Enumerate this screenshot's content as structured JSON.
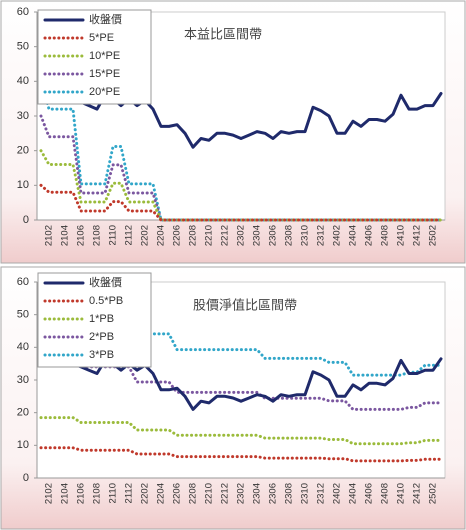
{
  "chart_data": [
    {
      "type": "line",
      "title": "本益比區間帶",
      "categories": [
        null,
        "2102",
        null,
        "2104",
        null,
        "2106",
        null,
        "2108",
        null,
        "2110",
        null,
        "2112",
        null,
        "2202",
        null,
        "2204",
        null,
        "2206",
        null,
        "2208",
        null,
        "2210",
        null,
        "2212",
        null,
        "2302",
        null,
        "2304",
        null,
        "2306",
        null,
        "2308",
        null,
        "2310",
        null,
        "2312",
        null,
        "2402",
        null,
        "2404",
        null,
        "2406",
        null,
        "2408",
        null,
        "2410",
        null,
        "2412",
        null,
        "2502",
        null
      ],
      "ylim": [
        0,
        60
      ],
      "yticks": [
        0,
        10,
        20,
        30,
        40,
        50,
        60
      ],
      "series": [
        {
          "name": "收盤價",
          "color": "#1f2a6b",
          "style": "solid",
          "values": [
            36,
            37,
            36,
            35,
            35,
            34,
            33,
            32,
            36,
            35,
            33,
            35,
            33,
            34.5,
            32,
            27,
            27,
            27.5,
            25,
            21,
            23.5,
            23,
            25,
            25,
            24.5,
            23.5,
            24.5,
            25.5,
            25,
            23.5,
            25.5,
            25,
            25.5,
            25.5,
            32.5,
            31.5,
            30,
            25,
            25,
            28.5,
            27,
            29,
            29,
            28.5,
            30.5,
            36,
            32,
            32,
            33,
            33,
            36.5
          ]
        },
        {
          "name": "5*PE",
          "color": "#c0392b",
          "style": "dotted",
          "values": [
            10,
            8,
            8,
            8,
            8,
            2.6,
            2.6,
            2.6,
            2.6,
            5.3,
            5.3,
            2.6,
            2.6,
            2.6,
            2.6,
            0,
            0,
            0,
            0,
            0,
            0,
            0,
            0,
            0,
            0,
            0,
            0,
            0,
            0,
            0,
            0,
            0,
            0,
            0,
            0,
            0,
            0,
            0,
            0,
            0,
            0,
            0,
            0,
            0,
            0,
            0,
            0,
            0,
            0,
            0,
            0
          ]
        },
        {
          "name": "10*PE",
          "color": "#9bbb3b",
          "style": "dotted",
          "values": [
            20,
            16,
            16,
            16,
            16,
            5.2,
            5.2,
            5.2,
            5.2,
            10.6,
            10.6,
            5.2,
            5.2,
            5.2,
            5.2,
            0,
            0,
            0,
            0,
            0,
            0,
            0,
            0,
            0,
            0,
            0,
            0,
            0,
            0,
            0,
            0,
            0,
            0,
            0,
            0,
            0,
            0,
            0,
            0,
            0,
            0,
            0,
            0,
            0,
            0,
            0,
            0,
            0,
            0,
            0,
            0
          ]
        },
        {
          "name": "15*PE",
          "color": "#7b57a0",
          "style": "dotted",
          "values": [
            30,
            24,
            24,
            24,
            24,
            7.8,
            7.8,
            7.8,
            7.8,
            15.9,
            15.9,
            7.8,
            7.8,
            7.8,
            7.8,
            0,
            0,
            0,
            0,
            0,
            0,
            0,
            0,
            0,
            0,
            0,
            0,
            0,
            0,
            0,
            0,
            0,
            0,
            0,
            0,
            0,
            0,
            0,
            0,
            0,
            0,
            0,
            0,
            0,
            0,
            0,
            0,
            0,
            0,
            0,
            0
          ]
        },
        {
          "name": "20*PE",
          "color": "#31a6c9",
          "style": "dotted",
          "values": [
            40,
            32,
            32,
            32,
            32,
            10.4,
            10.4,
            10.4,
            10.4,
            21.2,
            21.2,
            10.4,
            10.4,
            10.4,
            10.4,
            0,
            0,
            0,
            0,
            0,
            0,
            0,
            0,
            0,
            0,
            0,
            0,
            0,
            0,
            0,
            0,
            0,
            0,
            0,
            0,
            0,
            0,
            0,
            0,
            0,
            0,
            0,
            0,
            0,
            0,
            0,
            0,
            0,
            0,
            0,
            0
          ]
        }
      ]
    },
    {
      "type": "line",
      "title": "股價淨值比區間帶",
      "categories": [
        null,
        "2102",
        null,
        "2104",
        null,
        "2106",
        null,
        "2108",
        null,
        "2110",
        null,
        "2112",
        null,
        "2202",
        null,
        "2204",
        null,
        "2206",
        null,
        "2208",
        null,
        "2210",
        null,
        "2212",
        null,
        "2302",
        null,
        "2304",
        null,
        "2306",
        null,
        "2308",
        null,
        "2310",
        null,
        "2312",
        null,
        "2402",
        null,
        "2404",
        null,
        "2406",
        null,
        "2408",
        null,
        "2410",
        null,
        "2412",
        null,
        "2502",
        null
      ],
      "ylim": [
        0,
        60
      ],
      "yticks": [
        0,
        10,
        20,
        30,
        40,
        50,
        60
      ],
      "series": [
        {
          "name": "收盤價",
          "color": "#1f2a6b",
          "style": "solid",
          "values": [
            36,
            37,
            36,
            35,
            35,
            34,
            33,
            32,
            36,
            35,
            33,
            35,
            33,
            34.5,
            32,
            27,
            27,
            27.5,
            25,
            21,
            23.5,
            23,
            25,
            25,
            24.5,
            23.5,
            24.5,
            25.5,
            25,
            23.5,
            25.5,
            25,
            25.5,
            25.5,
            32.5,
            31.5,
            30,
            25,
            25,
            28.5,
            27,
            29,
            29,
            28.5,
            30.5,
            36,
            32,
            32,
            33,
            33,
            36.5
          ]
        },
        {
          "name": "0.5*PB",
          "color": "#c0392b",
          "style": "dotted",
          "values": [
            9.25,
            9.25,
            9.25,
            9.25,
            9.25,
            8.5,
            8.5,
            8.5,
            8.5,
            8.5,
            8.5,
            8.5,
            7.35,
            7.35,
            7.35,
            7.35,
            7.35,
            6.55,
            6.55,
            6.55,
            6.55,
            6.55,
            6.55,
            6.55,
            6.55,
            6.55,
            6.55,
            6.55,
            6.1,
            6.1,
            6.1,
            6.1,
            6.1,
            6.1,
            6.1,
            6.1,
            5.9,
            5.9,
            5.9,
            5.25,
            5.25,
            5.25,
            5.25,
            5.25,
            5.25,
            5.25,
            5.4,
            5.4,
            5.75,
            5.75,
            5.75
          ]
        },
        {
          "name": "1*PB",
          "color": "#9bbb3b",
          "style": "dotted",
          "values": [
            18.5,
            18.5,
            18.5,
            18.5,
            18.5,
            17,
            17,
            17,
            17,
            17,
            17,
            17,
            14.7,
            14.7,
            14.7,
            14.7,
            14.7,
            13.1,
            13.1,
            13.1,
            13.1,
            13.1,
            13.1,
            13.1,
            13.1,
            13.1,
            13.1,
            13.1,
            12.2,
            12.2,
            12.2,
            12.2,
            12.2,
            12.2,
            12.2,
            12.2,
            11.8,
            11.8,
            11.8,
            10.5,
            10.5,
            10.5,
            10.5,
            10.5,
            10.5,
            10.5,
            10.8,
            10.8,
            11.5,
            11.5,
            11.5
          ]
        },
        {
          "name": "2*PB",
          "color": "#7b57a0",
          "style": "dotted",
          "values": [
            37,
            37,
            37,
            37,
            37,
            34,
            34,
            34,
            34,
            34,
            34,
            34,
            29.4,
            29.4,
            29.4,
            29.4,
            29.4,
            26.2,
            26.2,
            26.2,
            26.2,
            26.2,
            26.2,
            26.2,
            26.2,
            26.2,
            26.2,
            26.2,
            24.4,
            24.4,
            24.4,
            24.4,
            24.4,
            24.4,
            24.4,
            24.4,
            23.6,
            23.6,
            23.6,
            21,
            21,
            21,
            21,
            21,
            21,
            21,
            21.6,
            21.6,
            23,
            23,
            23
          ]
        },
        {
          "name": "3*PB",
          "color": "#31a6c9",
          "style": "dotted",
          "values": [
            55.5,
            55.5,
            55.5,
            55.5,
            55.5,
            51,
            51,
            51,
            51,
            51,
            51,
            51,
            44.1,
            44.1,
            44.1,
            44.1,
            44.1,
            39.3,
            39.3,
            39.3,
            39.3,
            39.3,
            39.3,
            39.3,
            39.3,
            39.3,
            39.3,
            39.3,
            36.6,
            36.6,
            36.6,
            36.6,
            36.6,
            36.6,
            36.6,
            36.6,
            35.4,
            35.4,
            35.4,
            31.5,
            31.5,
            31.5,
            31.5,
            31.5,
            31.5,
            31.5,
            32.4,
            32.4,
            34.5,
            34.5,
            34.5
          ]
        }
      ]
    }
  ]
}
